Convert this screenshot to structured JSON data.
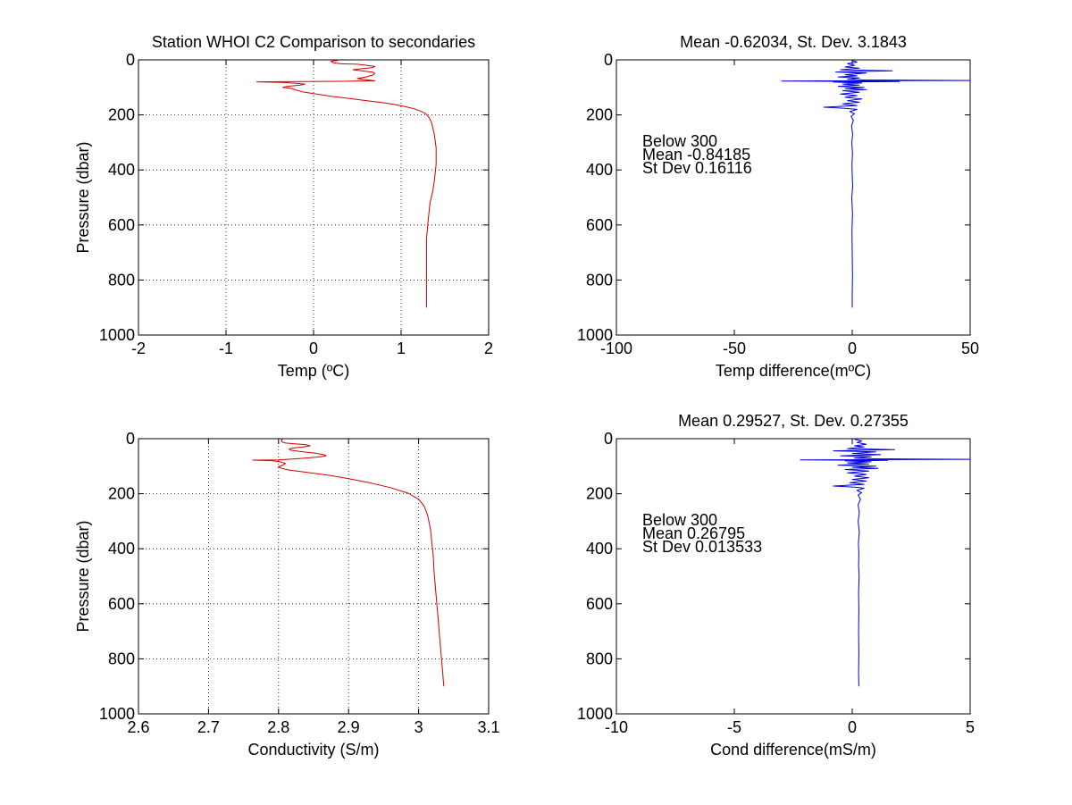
{
  "figure": {
    "background": "#ffffff",
    "trace_color_profile": "#d00000",
    "trace_color_difference": "#0000e0"
  },
  "chart_data": [
    {
      "id": "temp",
      "type": "line",
      "title": "Station  WHOI C2 Comparison to secondaries",
      "xlabel": "Temp (ºC)",
      "ylabel": "Pressure (dbar)",
      "xlim": [
        -2,
        2
      ],
      "ylim": [
        0,
        1000
      ],
      "y_reversed": true,
      "grid": true,
      "xticks": [
        -2,
        -1,
        0,
        1,
        2
      ],
      "yticks": [
        0,
        200,
        400,
        600,
        800,
        1000
      ],
      "xtick_labels": [
        "-2",
        "-1",
        "0",
        "1",
        "2"
      ],
      "ytick_labels": [
        "0",
        "200",
        "400",
        "600",
        "800",
        "1000"
      ],
      "series": [
        {
          "color": "#d00000",
          "points": [
            [
              0.28,
              2
            ],
            [
              0.2,
              5
            ],
            [
              0.22,
              10
            ],
            [
              0.3,
              14
            ],
            [
              0.5,
              16
            ],
            [
              0.62,
              20
            ],
            [
              0.7,
              24
            ],
            [
              0.68,
              28
            ],
            [
              0.55,
              32
            ],
            [
              0.45,
              36
            ],
            [
              0.55,
              40
            ],
            [
              0.68,
              45
            ],
            [
              0.7,
              50
            ],
            [
              0.68,
              55
            ],
            [
              0.6,
              62
            ],
            [
              0.5,
              68
            ],
            [
              0.6,
              72
            ],
            [
              0.7,
              76
            ],
            [
              0.3,
              78
            ],
            [
              -0.1,
              79
            ],
            [
              -0.65,
              80
            ],
            [
              -0.35,
              82
            ],
            [
              -0.2,
              85
            ],
            [
              -0.1,
              88
            ],
            [
              -0.15,
              92
            ],
            [
              -0.3,
              96
            ],
            [
              -0.35,
              100
            ],
            [
              -0.25,
              104
            ],
            [
              -0.2,
              110
            ],
            [
              -0.1,
              118
            ],
            [
              0.05,
              125
            ],
            [
              0.2,
              132
            ],
            [
              0.4,
              140
            ],
            [
              0.6,
              148
            ],
            [
              0.78,
              155
            ],
            [
              0.92,
              162
            ],
            [
              1.05,
              170
            ],
            [
              1.15,
              178
            ],
            [
              1.22,
              186
            ],
            [
              1.28,
              195
            ],
            [
              1.32,
              210
            ],
            [
              1.35,
              230
            ],
            [
              1.38,
              270
            ],
            [
              1.4,
              320
            ],
            [
              1.4,
              380
            ],
            [
              1.38,
              440
            ],
            [
              1.36,
              480
            ],
            [
              1.33,
              520
            ],
            [
              1.31,
              580
            ],
            [
              1.29,
              650
            ],
            [
              1.29,
              750
            ],
            [
              1.29,
              850
            ],
            [
              1.29,
              900
            ]
          ]
        }
      ]
    },
    {
      "id": "tempdiff",
      "type": "line",
      "title": "Mean -0.62034, St. Dev. 3.1843",
      "xlabel": "Temp difference(mºC)",
      "ylabel": "",
      "xlim": [
        -100,
        50
      ],
      "ylim": [
        0,
        1000
      ],
      "y_reversed": true,
      "grid": false,
      "xticks": [
        -100,
        -50,
        0,
        50
      ],
      "yticks": [
        0,
        200,
        400,
        600,
        800,
        1000
      ],
      "xtick_labels": [
        "-100",
        "-50",
        "0",
        "50"
      ],
      "ytick_labels": [
        "0",
        "200",
        "400",
        "600",
        "800",
        "1000"
      ],
      "annotation": [
        "Below 300",
        "Mean -0.84185",
        "St Dev 0.16116"
      ],
      "series": [
        {
          "color": "#0000e0",
          "points": [
            [
              0,
              2
            ],
            [
              2,
              8
            ],
            [
              -2,
              14
            ],
            [
              1,
              20
            ],
            [
              -3,
              26
            ],
            [
              3,
              30
            ],
            [
              -5,
              36
            ],
            [
              17,
              40
            ],
            [
              -7,
              44
            ],
            [
              6,
              48
            ],
            [
              -3,
              54
            ],
            [
              2,
              58
            ],
            [
              -6,
              62
            ],
            [
              3,
              66
            ],
            [
              -2,
              70
            ],
            [
              5,
              73
            ],
            [
              50,
              75
            ],
            [
              -30,
              77
            ],
            [
              -10,
              78
            ],
            [
              20,
              79
            ],
            [
              -8,
              81
            ],
            [
              4,
              84
            ],
            [
              -4,
              88
            ],
            [
              3,
              92
            ],
            [
              -6,
              96
            ],
            [
              5,
              100
            ],
            [
              -3,
              104
            ],
            [
              6,
              108
            ],
            [
              -4,
              112
            ],
            [
              3,
              118
            ],
            [
              -5,
              124
            ],
            [
              2,
              130
            ],
            [
              -3,
              136
            ],
            [
              4,
              142
            ],
            [
              -2,
              148
            ],
            [
              3,
              154
            ],
            [
              -4,
              160
            ],
            [
              2,
              166
            ],
            [
              -12,
              172
            ],
            [
              -3,
              176
            ],
            [
              2,
              180
            ],
            [
              -1,
              188
            ],
            [
              1,
              196
            ],
            [
              -0.5,
              205
            ],
            [
              0.5,
              220
            ],
            [
              -0.3,
              240
            ],
            [
              0.2,
              270
            ],
            [
              -0.2,
              300
            ],
            [
              0.1,
              340
            ],
            [
              -0.1,
              380
            ],
            [
              0,
              420
            ],
            [
              0.2,
              460
            ],
            [
              -0.2,
              500
            ],
            [
              0.1,
              560
            ],
            [
              -0.1,
              620
            ],
            [
              0,
              700
            ],
            [
              0.1,
              780
            ],
            [
              0,
              850
            ],
            [
              0,
              900
            ]
          ]
        }
      ]
    },
    {
      "id": "cond",
      "type": "line",
      "title": "",
      "xlabel": "Conductivity (S/m)",
      "ylabel": "Pressure (dbar)",
      "xlim": [
        2.6,
        3.1
      ],
      "ylim": [
        0,
        1000
      ],
      "y_reversed": true,
      "grid": true,
      "xticks": [
        2.6,
        2.7,
        2.8,
        2.9,
        3.0,
        3.1
      ],
      "yticks": [
        0,
        200,
        400,
        600,
        800,
        1000
      ],
      "xtick_labels": [
        "2.6",
        "2.7",
        "2.8",
        "2.9",
        "3",
        "3.1"
      ],
      "ytick_labels": [
        "0",
        "200",
        "400",
        "600",
        "800",
        "1000"
      ],
      "series": [
        {
          "color": "#d00000",
          "points": [
            [
              2.806,
              2
            ],
            [
              2.804,
              6
            ],
            [
              2.805,
              12
            ],
            [
              2.81,
              16
            ],
            [
              2.825,
              19
            ],
            [
              2.84,
              22
            ],
            [
              2.845,
              26
            ],
            [
              2.835,
              30
            ],
            [
              2.82,
              34
            ],
            [
              2.815,
              38
            ],
            [
              2.818,
              42
            ],
            [
              2.83,
              46
            ],
            [
              2.85,
              52
            ],
            [
              2.865,
              58
            ],
            [
              2.868,
              62
            ],
            [
              2.86,
              66
            ],
            [
              2.84,
              70
            ],
            [
              2.82,
              74
            ],
            [
              2.8,
              77
            ],
            [
              2.763,
              78
            ],
            [
              2.79,
              80
            ],
            [
              2.802,
              84
            ],
            [
              2.81,
              90
            ],
            [
              2.806,
              96
            ],
            [
              2.8,
              102
            ],
            [
              2.805,
              108
            ],
            [
              2.815,
              114
            ],
            [
              2.84,
              122
            ],
            [
              2.87,
              132
            ],
            [
              2.9,
              145
            ],
            [
              2.93,
              160
            ],
            [
              2.96,
              178
            ],
            [
              2.985,
              198
            ],
            [
              3.0,
              220
            ],
            [
              3.008,
              245
            ],
            [
              3.013,
              280
            ],
            [
              3.017,
              330
            ],
            [
              3.019,
              380
            ],
            [
              3.021,
              430
            ],
            [
              3.022,
              480
            ],
            [
              3.024,
              540
            ],
            [
              3.026,
              600
            ],
            [
              3.028,
              660
            ],
            [
              3.03,
              720
            ],
            [
              3.032,
              780
            ],
            [
              3.034,
              840
            ],
            [
              3.036,
              900
            ]
          ]
        }
      ]
    },
    {
      "id": "conddiff",
      "type": "line",
      "title": "Mean 0.29527, St. Dev. 0.27355",
      "xlabel": "Cond difference(mS/m)",
      "ylabel": "",
      "xlim": [
        -10,
        5
      ],
      "ylim": [
        0,
        1000
      ],
      "y_reversed": true,
      "grid": false,
      "xticks": [
        -10,
        -5,
        0,
        5
      ],
      "yticks": [
        0,
        200,
        400,
        600,
        800,
        1000
      ],
      "xtick_labels": [
        "-10",
        "-5",
        "0",
        "5"
      ],
      "ytick_labels": [
        "0",
        "200",
        "400",
        "600",
        "800",
        "1000"
      ],
      "annotation": [
        "Below 300",
        "Mean 0.26795",
        "St Dev 0.013533"
      ],
      "series": [
        {
          "color": "#0000e0",
          "points": [
            [
              0.1,
              2
            ],
            [
              0.4,
              8
            ],
            [
              0.2,
              14
            ],
            [
              0.6,
              20
            ],
            [
              0.1,
              26
            ],
            [
              0.5,
              30
            ],
            [
              -0.2,
              36
            ],
            [
              1.8,
              40
            ],
            [
              -0.8,
              44
            ],
            [
              1.0,
              48
            ],
            [
              0.0,
              54
            ],
            [
              1.2,
              58
            ],
            [
              -0.5,
              62
            ],
            [
              0.8,
              66
            ],
            [
              0.1,
              70
            ],
            [
              0.9,
              73
            ],
            [
              5,
              75
            ],
            [
              -2.2,
              77
            ],
            [
              -0.5,
              78
            ],
            [
              1.5,
              79
            ],
            [
              -0.3,
              81
            ],
            [
              0.8,
              84
            ],
            [
              -0.2,
              88
            ],
            [
              0.7,
              92
            ],
            [
              -0.6,
              96
            ],
            [
              1.0,
              100
            ],
            [
              0.0,
              104
            ],
            [
              1.1,
              108
            ],
            [
              -0.3,
              112
            ],
            [
              0.7,
              118
            ],
            [
              -0.2,
              124
            ],
            [
              0.6,
              130
            ],
            [
              0.1,
              136
            ],
            [
              0.7,
              142
            ],
            [
              0.0,
              148
            ],
            [
              0.6,
              154
            ],
            [
              -0.1,
              160
            ],
            [
              0.5,
              166
            ],
            [
              -0.8,
              172
            ],
            [
              0.1,
              176
            ],
            [
              0.5,
              180
            ],
            [
              0.2,
              188
            ],
            [
              0.4,
              196
            ],
            [
              0.25,
              205
            ],
            [
              0.35,
              220
            ],
            [
              0.25,
              240
            ],
            [
              0.3,
              270
            ],
            [
              0.25,
              300
            ],
            [
              0.3,
              340
            ],
            [
              0.26,
              380
            ],
            [
              0.28,
              420
            ],
            [
              0.27,
              460
            ],
            [
              0.29,
              500
            ],
            [
              0.27,
              560
            ],
            [
              0.28,
              620
            ],
            [
              0.27,
              700
            ],
            [
              0.28,
              780
            ],
            [
              0.27,
              850
            ],
            [
              0.28,
              900
            ]
          ]
        }
      ]
    }
  ]
}
